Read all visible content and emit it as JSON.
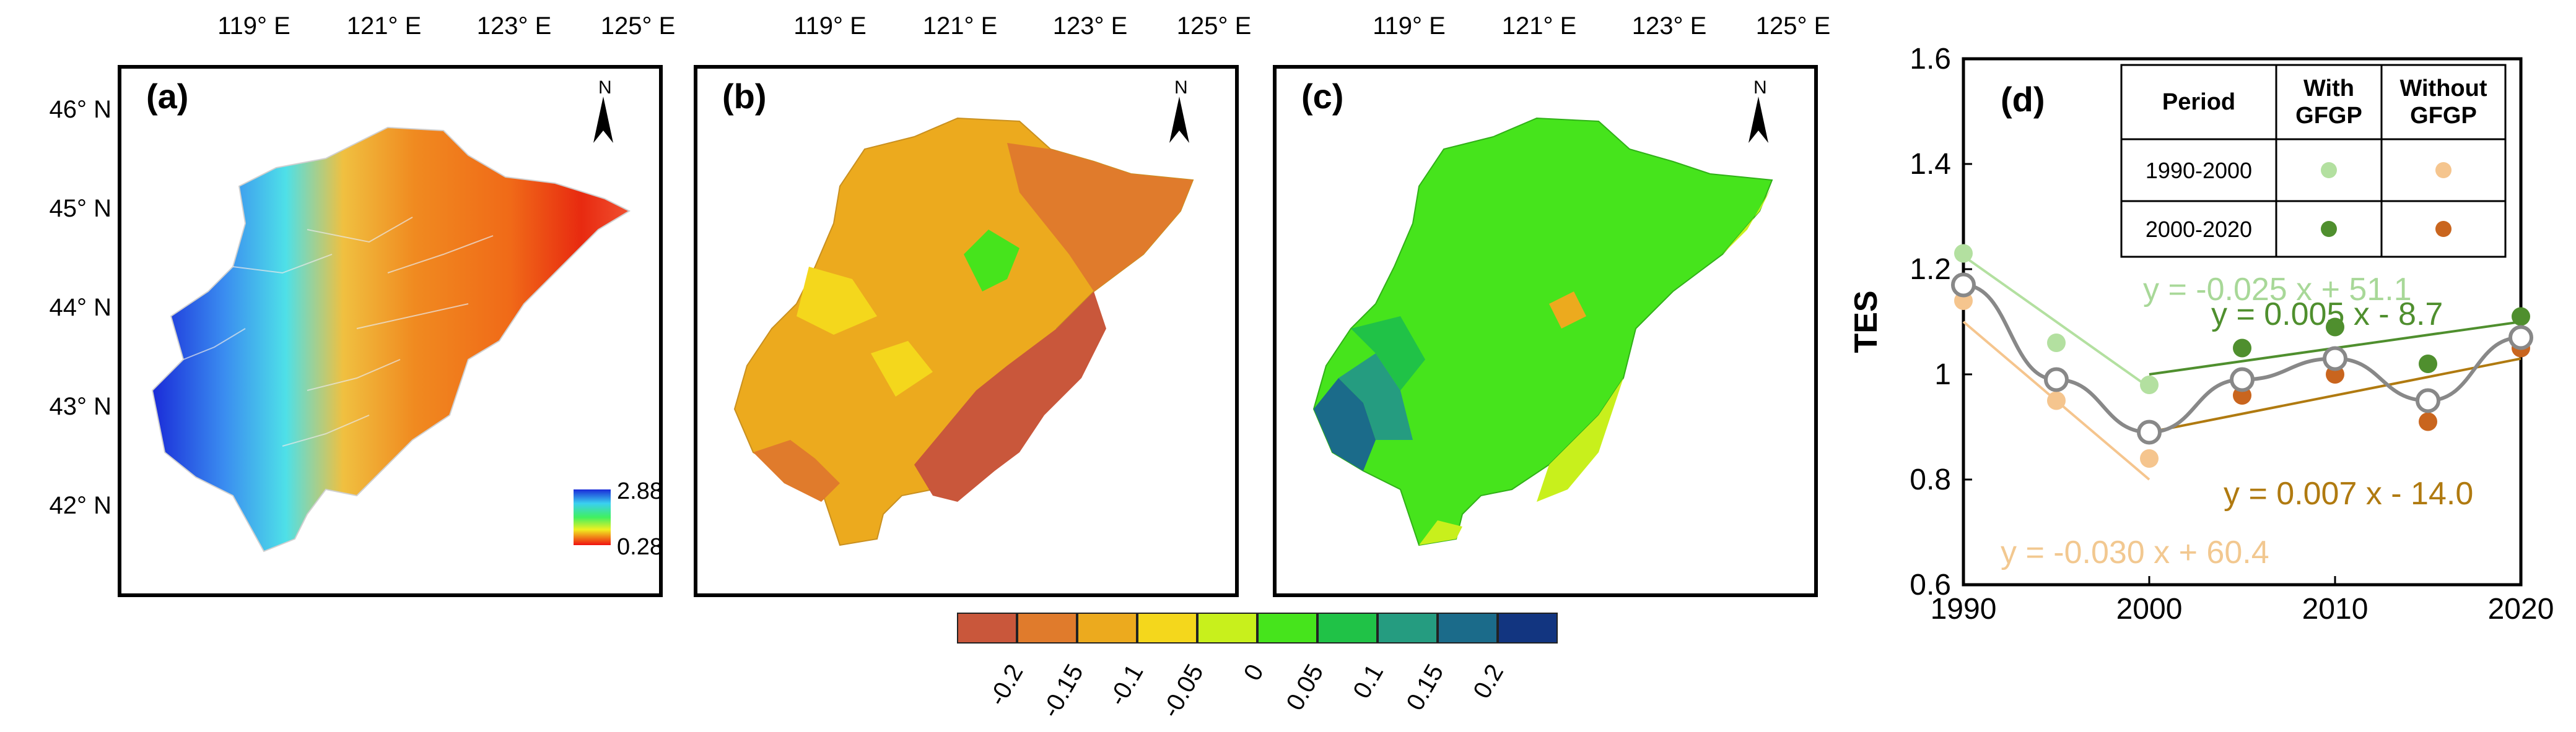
{
  "maps": {
    "panels": [
      {
        "label": "(a)",
        "name": "map-a"
      },
      {
        "label": "(b)",
        "name": "map-b"
      },
      {
        "label": "(c)",
        "name": "map-c"
      }
    ],
    "lon_labels": [
      "119° E",
      "121° E",
      "123° E",
      "125° E"
    ],
    "lat_labels": [
      "46° N",
      "45° N",
      "44° N",
      "43° N",
      "42° N"
    ],
    "north_symbol": "N",
    "legend_a": {
      "max": "2.88",
      "min": "0.28"
    },
    "colorbar": {
      "colors": [
        "#c9573b",
        "#e07b2c",
        "#ecaa1e",
        "#f4d71c",
        "#c8f01c",
        "#46e41c",
        "#20c247",
        "#259c80",
        "#1b6b8a",
        "#123580"
      ],
      "labels": [
        "-0.2",
        "-0.15",
        "-0.1",
        "-0.05",
        "0",
        "0.05",
        "0.1",
        "0.15",
        "0.2"
      ]
    }
  },
  "chart_data": {
    "type": "scatter",
    "panel_label": "(d)",
    "ylabel": "TES",
    "xlabel": "",
    "xlim": [
      1990,
      2020
    ],
    "ylim": [
      0.6,
      1.6
    ],
    "x_ticks": [
      1990,
      2000,
      2010,
      2020
    ],
    "y_ticks": [
      "0.6",
      "0.8",
      "1",
      "1.2",
      "1.4",
      "1.6"
    ],
    "series": [
      {
        "name": "Overall TES",
        "color": "#888888",
        "x": [
          1990,
          1995,
          2000,
          2005,
          2010,
          2015,
          2020
        ],
        "y": [
          1.17,
          0.99,
          0.89,
          0.99,
          1.03,
          0.95,
          1.07
        ]
      },
      {
        "name": "1990-2000 With GFGP",
        "color": "#b3e0a0",
        "x": [
          1990,
          1995,
          2000
        ],
        "y": [
          1.23,
          1.06,
          0.98
        ]
      },
      {
        "name": "1990-2000 Without GFGP",
        "color": "#f5c58e",
        "x": [
          1990,
          1995,
          2000
        ],
        "y": [
          1.14,
          0.95,
          0.84
        ]
      },
      {
        "name": "2000-2020 With GFGP",
        "color": "#4f8f2e",
        "x": [
          2005,
          2010,
          2015,
          2020
        ],
        "y": [
          1.05,
          1.09,
          1.02,
          1.11
        ]
      },
      {
        "name": "2000-2020 Without GFGP",
        "color": "#c9651e",
        "x": [
          2005,
          2010,
          2015,
          2020
        ],
        "y": [
          0.96,
          1.0,
          0.91,
          1.05
        ]
      }
    ],
    "trend_lines": [
      {
        "label": "y = -0.025 x + 51.1",
        "color": "#b3e0a0",
        "x": [
          1990,
          2000
        ],
        "y": [
          1.225,
          0.975
        ]
      },
      {
        "label": "y = -0.030 x + 60.4",
        "color": "#f5c58e",
        "x": [
          1990,
          2000
        ],
        "y": [
          1.1,
          0.8
        ]
      },
      {
        "label": "y = 0.005 x - 8.7",
        "color": "#4f8f2e",
        "x": [
          2000,
          2020
        ],
        "y": [
          1.0,
          1.1
        ]
      },
      {
        "label": "y = 0.007 x - 14.0",
        "color": "#b07a10",
        "x": [
          2000,
          2020
        ],
        "y": [
          0.89,
          1.03
        ]
      }
    ],
    "legend_table": {
      "headers": [
        "Period",
        "With GFGP",
        "Without GFGP"
      ],
      "rows": [
        {
          "period": "1990-2000",
          "with_color": "#b3e0a0",
          "without_color": "#f5c58e"
        },
        {
          "period": "2000-2020",
          "with_color": "#4f8f2e",
          "without_color": "#c9651e"
        }
      ]
    }
  }
}
